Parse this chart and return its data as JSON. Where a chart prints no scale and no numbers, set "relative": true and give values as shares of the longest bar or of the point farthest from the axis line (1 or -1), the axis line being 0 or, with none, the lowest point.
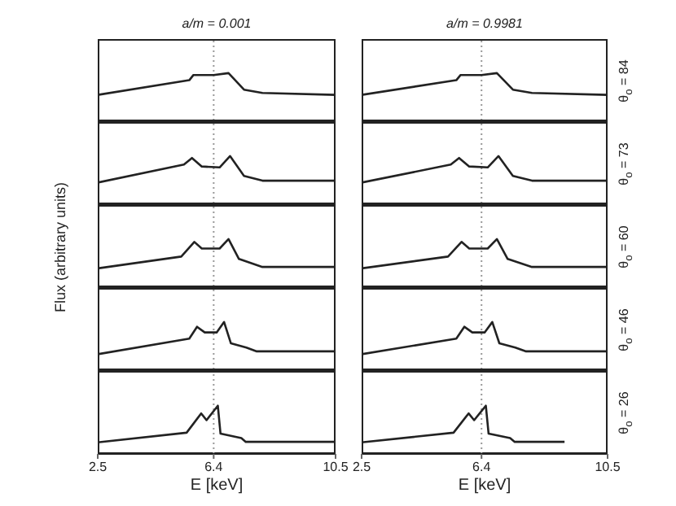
{
  "chart_data": [
    {
      "type": "line",
      "title": "a/m = 0.001",
      "relative": true,
      "xlim": [
        2.5,
        10.5
      ],
      "xticks": [
        2.5,
        6.4,
        10.5
      ],
      "tick_labels": false,
      "color": "#222222",
      "x": [
        2.5,
        5.58,
        5.72,
        6.4,
        6.9,
        7.42,
        8.04,
        10.5
      ],
      "values": [
        0.54,
        0.85,
        0.96,
        0.96,
        1,
        0.65,
        0.58,
        0.54
      ],
      "ref_lines": [
        {
          "axis": "x",
          "value": 6.4,
          "line_style": "dotted",
          "color": "#999999"
        }
      ]
    },
    {
      "type": "line",
      "title": "a/m = 0.9981",
      "y2label": "θ$_{o}$ = 84",
      "relative": true,
      "xlim": [
        2.5,
        10.5
      ],
      "xticks": [
        2.5,
        6.4,
        10.5
      ],
      "tick_labels": false,
      "color": "#222222",
      "x": [
        2.5,
        5.58,
        5.72,
        6.4,
        6.9,
        7.42,
        8.04,
        10.5
      ],
      "values": [
        0.54,
        0.85,
        0.96,
        0.96,
        1,
        0.65,
        0.58,
        0.54
      ],
      "ref_lines": [
        {
          "axis": "x",
          "value": 6.4,
          "line_style": "dotted",
          "color": "#999999"
        }
      ]
    },
    {
      "type": "line",
      "relative": true,
      "xlim": [
        2.5,
        10.5
      ],
      "xticks": [
        2.5,
        6.4,
        10.5
      ],
      "tick_labels": false,
      "color": "#222222",
      "x": [
        2.5,
        5.4,
        5.67,
        6.0,
        6.6,
        6.95,
        7.42,
        8.04,
        10.5
      ],
      "values": [
        0.44,
        0.82,
        0.96,
        0.78,
        0.76,
        1,
        0.58,
        0.48,
        0.48
      ],
      "ref_lines": [
        {
          "axis": "x",
          "value": 6.4,
          "line_style": "dotted",
          "color": "#999999"
        }
      ]
    },
    {
      "type": "line",
      "y2label": "θ$_{o}$ = 73",
      "relative": true,
      "xlim": [
        2.5,
        10.5
      ],
      "xticks": [
        2.5,
        6.4,
        10.5
      ],
      "tick_labels": false,
      "color": "#222222",
      "x": [
        2.5,
        5.4,
        5.67,
        6.0,
        6.6,
        6.95,
        7.42,
        8.04,
        10.5
      ],
      "values": [
        0.44,
        0.82,
        0.96,
        0.78,
        0.76,
        1,
        0.58,
        0.48,
        0.48
      ],
      "ref_lines": [
        {
          "axis": "x",
          "value": 6.4,
          "line_style": "dotted",
          "color": "#999999"
        }
      ]
    },
    {
      "type": "line",
      "ylabel": "Flux (arbitrary units)",
      "relative": true,
      "xlim": [
        2.5,
        10.5
      ],
      "xticks": [
        2.5,
        6.4,
        10.5
      ],
      "tick_labels": false,
      "color": "#222222",
      "x": [
        2.5,
        5.31,
        5.75,
        6.0,
        6.6,
        6.9,
        7.25,
        8.04,
        10.5
      ],
      "values": [
        0.38,
        0.63,
        0.94,
        0.8,
        0.8,
        1,
        0.58,
        0.41,
        0.41
      ],
      "ref_lines": [
        {
          "axis": "x",
          "value": 6.4,
          "line_style": "dotted",
          "color": "#999999"
        }
      ]
    },
    {
      "type": "line",
      "y2label": "θ$_{o}$ = 60",
      "relative": true,
      "xlim": [
        2.5,
        10.5
      ],
      "xticks": [
        2.5,
        6.4,
        10.5
      ],
      "tick_labels": false,
      "color": "#222222",
      "x": [
        2.5,
        5.31,
        5.75,
        6.0,
        6.6,
        6.9,
        7.25,
        8.04,
        10.5
      ],
      "values": [
        0.38,
        0.63,
        0.94,
        0.8,
        0.8,
        1,
        0.58,
        0.41,
        0.41
      ],
      "ref_lines": [
        {
          "axis": "x",
          "value": 6.4,
          "line_style": "dotted",
          "color": "#999999"
        }
      ]
    },
    {
      "type": "line",
      "relative": true,
      "xlim": [
        2.5,
        10.5
      ],
      "xticks": [
        2.5,
        6.4,
        10.5
      ],
      "tick_labels": false,
      "color": "#222222",
      "x": [
        2.5,
        5.58,
        5.84,
        6.1,
        6.5,
        6.75,
        6.98,
        7.5,
        7.85,
        10.5
      ],
      "values": [
        0.32,
        0.65,
        0.9,
        0.78,
        0.78,
        1,
        0.55,
        0.46,
        0.38,
        0.38
      ],
      "ref_lines": [
        {
          "axis": "x",
          "value": 6.4,
          "line_style": "dotted",
          "color": "#999999"
        }
      ]
    },
    {
      "type": "line",
      "y2label": "θ$_{o}$ = 46",
      "relative": true,
      "xlim": [
        2.5,
        10.5
      ],
      "xticks": [
        2.5,
        6.4,
        10.5
      ],
      "tick_labels": false,
      "color": "#222222",
      "x": [
        2.5,
        5.58,
        5.84,
        6.1,
        6.5,
        6.75,
        6.98,
        7.5,
        7.85,
        10.5
      ],
      "values": [
        0.32,
        0.65,
        0.9,
        0.78,
        0.78,
        1,
        0.55,
        0.46,
        0.38,
        0.38
      ],
      "ref_lines": [
        {
          "axis": "x",
          "value": 6.4,
          "line_style": "dotted",
          "color": "#999999"
        }
      ]
    },
    {
      "type": "line",
      "xlabel": "E [keV]",
      "relative": true,
      "xlim": [
        2.5,
        10.5
      ],
      "xticks": [
        2.5,
        6.4,
        10.5
      ],
      "tick_labels": "x",
      "color": "#222222",
      "x": [
        2.5,
        5.49,
        5.98,
        6.16,
        6.54,
        6.63,
        7.33,
        7.48,
        10.5
      ],
      "values": [
        0.24,
        0.44,
        0.84,
        0.7,
        1.0,
        0.42,
        0.33,
        0.25,
        0.25
      ],
      "ref_lines": [
        {
          "axis": "x",
          "value": 6.4,
          "line_style": "dotted",
          "color": "#999999"
        }
      ]
    },
    {
      "type": "line",
      "xlabel": "E [keV]",
      "y2label": "θ$_{o}$ = 26",
      "relative": true,
      "xlim": [
        2.5,
        10.5
      ],
      "xticks": [
        2.5,
        6.4,
        10.5
      ],
      "tick_labels": "x",
      "color": "#222222",
      "x": [
        2.5,
        5.49,
        5.98,
        6.16,
        6.54,
        6.63,
        7.33,
        7.48,
        9.1
      ],
      "values": [
        0.24,
        0.44,
        0.84,
        0.7,
        1.0,
        0.42,
        0.33,
        0.25,
        0.25
      ],
      "ref_lines": [
        {
          "axis": "x",
          "value": 6.4,
          "line_style": "dotted",
          "color": "#999999"
        }
      ]
    }
  ]
}
